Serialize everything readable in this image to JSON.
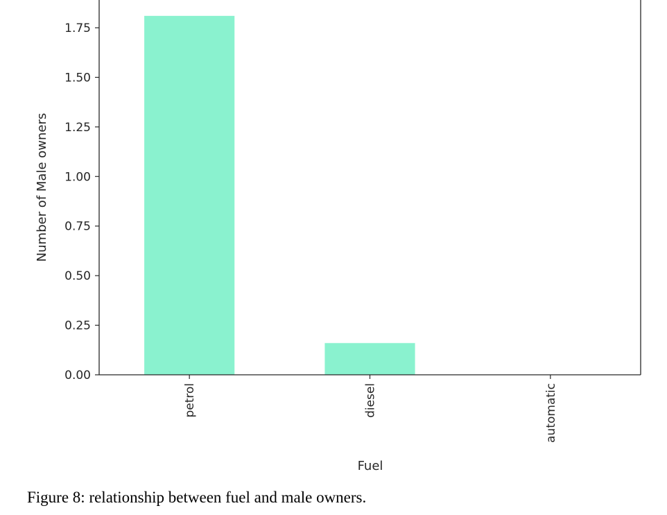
{
  "figure": {
    "caption": "Figure 8: relationship between fuel and male owners."
  },
  "chart_data": {
    "type": "bar",
    "categories": [
      "petrol",
      "diesel",
      "automatic"
    ],
    "values": [
      1.81,
      0.16,
      0.0
    ],
    "xlabel": "Fuel",
    "ylabel": "Number of Male owners",
    "ylim": [
      0,
      1.875
    ],
    "yticks": [
      "0.00",
      "0.25",
      "0.50",
      "0.75",
      "1.00",
      "1.25",
      "1.50",
      "1.75"
    ],
    "bar_color": "#8af2cf",
    "grid": false,
    "legend": "none"
  }
}
